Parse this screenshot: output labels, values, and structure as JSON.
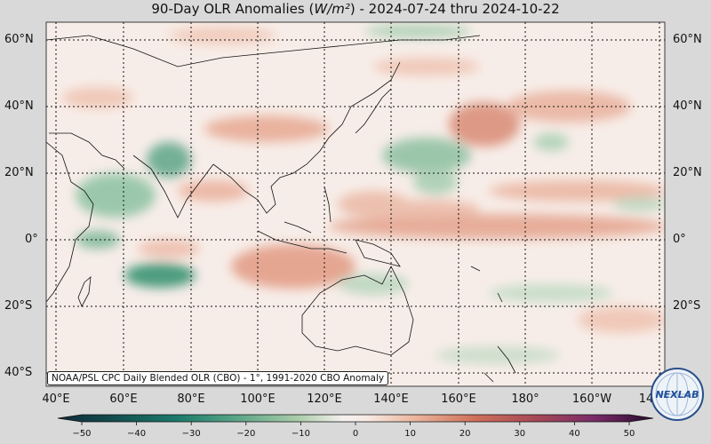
{
  "title": {
    "prefix": "90-Day OLR Anomalies (",
    "unit": "W/m²",
    "suffix": ") - 2024-07-24 thru 2024-10-22"
  },
  "lat_labels": [
    "60°N",
    "40°N",
    "20°N",
    "0°",
    "20°S",
    "40°S"
  ],
  "lon_labels": [
    "40°E",
    "60°E",
    "80°E",
    "100°E",
    "120°E",
    "140°E",
    "160°E",
    "180°",
    "160°W",
    "14"
  ],
  "credit": "NOAA/PSL CPC Daily Blended OLR (CBO) - 1°, 1991-2020 CBO Anomaly",
  "colorbar": {
    "ticks": [
      "−50",
      "−40",
      "−30",
      "−20",
      "−10",
      "0",
      "10",
      "20",
      "30",
      "40",
      "50"
    ]
  },
  "logo": {
    "text": "NEXLAB",
    "icon": "globe-logo-icon"
  },
  "colors": {
    "negative": "#1b7a5a",
    "positive": "#c8553d",
    "neutral": "#f7ede8"
  }
}
